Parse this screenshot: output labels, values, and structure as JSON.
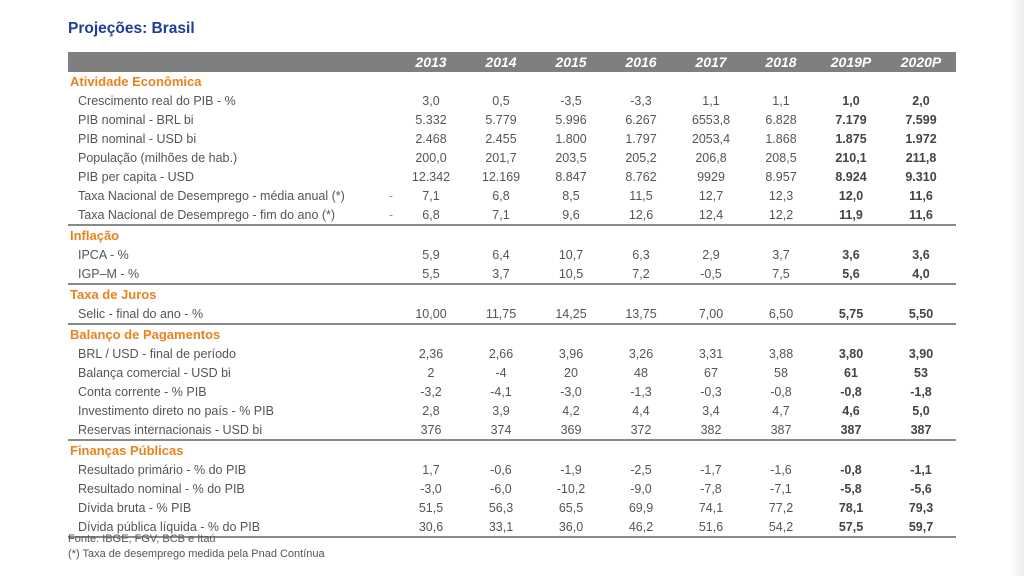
{
  "title": "Projeções: Brasil",
  "years": [
    "2013",
    "2014",
    "2015",
    "2016",
    "2017",
    "2018",
    "2019P",
    "2020P"
  ],
  "sections": [
    {
      "name": "Atividade Econômica",
      "rows": [
        {
          "label": "Crescimento real do PIB - %",
          "dash": "",
          "values": [
            "3,0",
            "0,5",
            "-3,5",
            "-3,3",
            "1,1",
            "1,1",
            "1,0",
            "2,0"
          ]
        },
        {
          "label": "PIB nominal - BRL bi",
          "dash": "",
          "values": [
            "5.332",
            "5.779",
            "5.996",
            "6.267",
            "6553,8",
            "6.828",
            "7.179",
            "7.599"
          ]
        },
        {
          "label": "PIB nominal - USD bi",
          "dash": "",
          "values": [
            "2.468",
            "2.455",
            "1.800",
            "1.797",
            "2053,4",
            "1.868",
            "1.875",
            "1.972"
          ]
        },
        {
          "label": "População (milhões de hab.)",
          "dash": "",
          "values": [
            "200,0",
            "201,7",
            "203,5",
            "205,2",
            "206,8",
            "208,5",
            "210,1",
            "211,8"
          ]
        },
        {
          "label": "PIB per capita - USD",
          "dash": "",
          "values": [
            "12.342",
            "12.169",
            "8.847",
            "8.762",
            "9929",
            "8.957",
            "8.924",
            "9.310"
          ]
        },
        {
          "label": "Taxa Nacional de Desemprego - média anual (*)",
          "dash": "-",
          "values": [
            "7,1",
            "6,8",
            "8,5",
            "11,5",
            "12,7",
            "12,3",
            "12,0",
            "11,6"
          ]
        },
        {
          "label": "Taxa Nacional de Desemprego - fim do ano (*)",
          "dash": "-",
          "values": [
            "6,8",
            "7,1",
            "9,6",
            "12,6",
            "12,4",
            "12,2",
            "11,9",
            "11,6"
          ]
        }
      ]
    },
    {
      "name": "Inflação",
      "rows": [
        {
          "label": "IPCA - %",
          "dash": "",
          "values": [
            "5,9",
            "6,4",
            "10,7",
            "6,3",
            "2,9",
            "3,7",
            "3,6",
            "3,6"
          ]
        },
        {
          "label": "IGP–M - %",
          "dash": "",
          "values": [
            "5,5",
            "3,7",
            "10,5",
            "7,2",
            "-0,5",
            "7,5",
            "5,6",
            "4,0"
          ]
        }
      ]
    },
    {
      "name": "Taxa de Juros",
      "rows": [
        {
          "label": "Selic - final do ano - %",
          "dash": "",
          "values": [
            "10,00",
            "11,75",
            "14,25",
            "13,75",
            "7,00",
            "6,50",
            "5,75",
            "5,50"
          ]
        }
      ]
    },
    {
      "name": "Balanço de Pagamentos",
      "rows": [
        {
          "label": "BRL / USD - final de período",
          "dash": "",
          "values": [
            "2,36",
            "2,66",
            "3,96",
            "3,26",
            "3,31",
            "3,88",
            "3,80",
            "3,90"
          ]
        },
        {
          "label": "Balança comercial - USD bi",
          "dash": "",
          "values": [
            "2",
            "-4",
            "20",
            "48",
            "67",
            "58",
            "61",
            "53"
          ]
        },
        {
          "label": "Conta corrente - % PIB",
          "dash": "",
          "values": [
            "-3,2",
            "-4,1",
            "-3,0",
            "-1,3",
            "-0,3",
            "-0,8",
            "-0,8",
            "-1,8"
          ]
        },
        {
          "label": "Investimento direto no país - % PIB",
          "dash": "",
          "values": [
            "2,8",
            "3,9",
            "4,2",
            "4,4",
            "3,4",
            "4,7",
            "4,6",
            "5,0"
          ]
        },
        {
          "label": "Reservas internacionais - USD bi",
          "dash": "",
          "values": [
            "376",
            "374",
            "369",
            "372",
            "382",
            "387",
            "387",
            "387"
          ]
        }
      ]
    },
    {
      "name": "Finanças Públicas",
      "rows": [
        {
          "label": "Resultado primário - % do PIB",
          "dash": "",
          "values": [
            "1,7",
            "-0,6",
            "-1,9",
            "-2,5",
            "-1,7",
            "-1,6",
            "-0,8",
            "-1,1"
          ]
        },
        {
          "label": "Resultado nominal - % do PIB",
          "dash": "",
          "values": [
            "-3,0",
            "-6,0",
            "-10,2",
            "-9,0",
            "-7,8",
            "-7,1",
            "-5,8",
            "-5,6"
          ]
        },
        {
          "label": "Dívida bruta - % PIB",
          "dash": "",
          "values": [
            "51,5",
            "56,3",
            "65,5",
            "69,9",
            "74,1",
            "77,2",
            "78,1",
            "79,3"
          ]
        },
        {
          "label": "Dívida pública líquida - % do PIB",
          "dash": "",
          "values": [
            "30,6",
            "33,1",
            "36,0",
            "46,2",
            "51,6",
            "54,2",
            "57,5",
            "59,7"
          ]
        }
      ]
    }
  ],
  "footer": {
    "source": "Fonte: IBGE, FGV, BCB e Itaú",
    "note": "(*) Taxa de desemprego medida pela Pnad Contínua"
  }
}
